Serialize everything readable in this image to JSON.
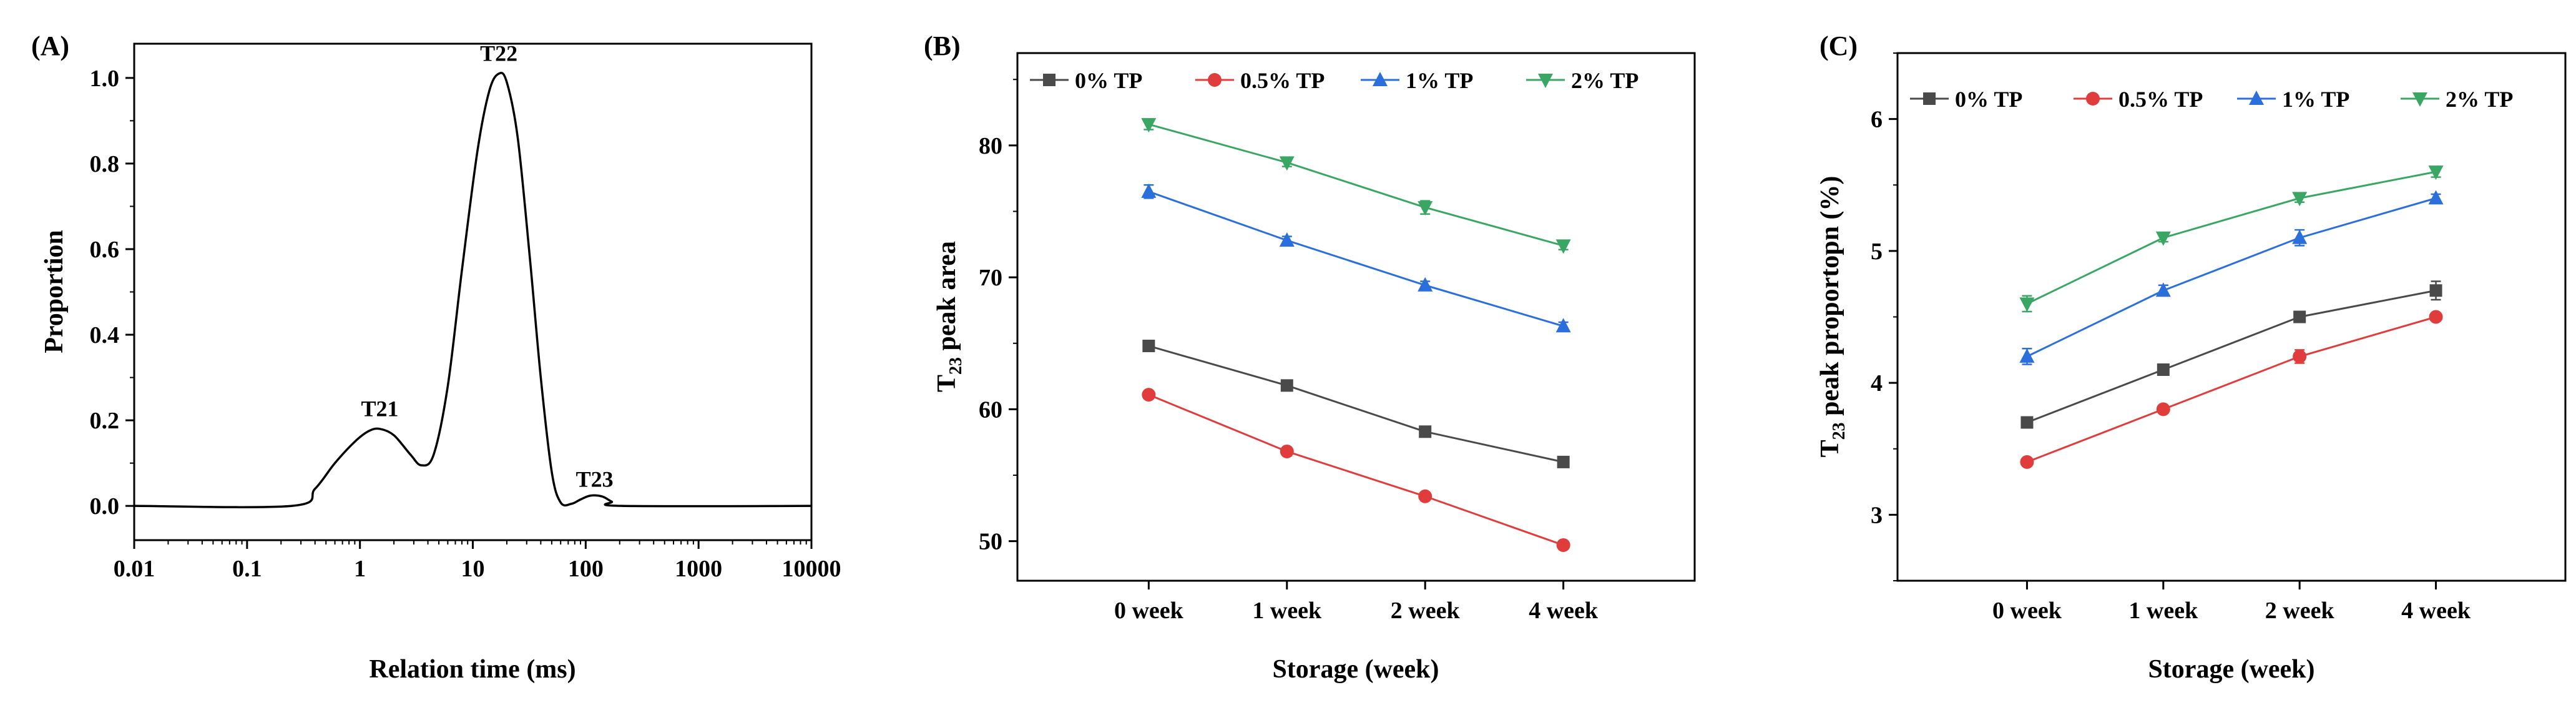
{
  "chart_data": [
    {
      "id": "A",
      "type": "line",
      "panel_label": "(A)",
      "xlabel": "Relation time (ms)",
      "ylabel": "Proportion",
      "xscale": "log",
      "xlim": [
        0.01,
        10000
      ],
      "ylim": [
        -0.08,
        1.08
      ],
      "x_ticks": [
        0.01,
        0.1,
        1,
        10,
        100,
        1000,
        10000
      ],
      "x_tick_labels": [
        "0.01",
        "0.1",
        "1",
        "10",
        "100",
        "1000",
        "10000"
      ],
      "y_ticks": [
        0.0,
        0.2,
        0.4,
        0.6,
        0.8,
        1.0
      ],
      "y_tick_labels": [
        "0.0",
        "0.2",
        "0.4",
        "0.6",
        "0.8",
        "1.0"
      ],
      "series": [
        {
          "name": "relaxation curve",
          "color": "#000000",
          "points": [
            [
              0.01,
              0
            ],
            [
              0.25,
              0
            ],
            [
              0.4,
              0.04
            ],
            [
              0.6,
              0.1
            ],
            [
              0.9,
              0.15
            ],
            [
              1.2,
              0.175
            ],
            [
              1.5,
              0.18
            ],
            [
              2.0,
              0.165
            ],
            [
              2.8,
              0.12
            ],
            [
              3.5,
              0.095
            ],
            [
              4.5,
              0.12
            ],
            [
              6,
              0.28
            ],
            [
              8,
              0.55
            ],
            [
              11,
              0.83
            ],
            [
              14,
              0.97
            ],
            [
              17,
              1.01
            ],
            [
              20,
              0.99
            ],
            [
              25,
              0.86
            ],
            [
              32,
              0.58
            ],
            [
              40,
              0.3
            ],
            [
              50,
              0.08
            ],
            [
              60,
              0.008
            ],
            [
              75,
              0.005
            ],
            [
              90,
              0.015
            ],
            [
              110,
              0.024
            ],
            [
              140,
              0.022
            ],
            [
              170,
              0.01
            ],
            [
              210,
              0
            ],
            [
              10000,
              0
            ]
          ]
        }
      ],
      "annotations": [
        {
          "text": "T21",
          "x": 1.5,
          "y": 0.21
        },
        {
          "text": "T22",
          "x": 17,
          "y": 1.04
        },
        {
          "text": "T23",
          "x": 120,
          "y": 0.045
        }
      ]
    },
    {
      "id": "B",
      "type": "line",
      "panel_label": "(B)",
      "xlabel": "Storage (week)",
      "ylabel_main": "T",
      "ylabel_sub": "23",
      "ylabel_rest": " peak area",
      "categories": [
        "0 week",
        "1 week",
        "2 week",
        "4 week"
      ],
      "ylim": [
        47,
        87
      ],
      "y_ticks": [
        50,
        60,
        70,
        80
      ],
      "y_tick_labels": [
        "50",
        "60",
        "70",
        "80"
      ],
      "series": [
        {
          "name": "0% TP",
          "color": "#4a4a4a",
          "marker": "square",
          "values": [
            64.8,
            61.8,
            58.3,
            56.0
          ],
          "errors": [
            0.3,
            0.3,
            0.4,
            0.3
          ]
        },
        {
          "name": "0.5% TP",
          "color": "#e03c3c",
          "marker": "circle",
          "values": [
            61.1,
            56.8,
            53.4,
            49.7
          ],
          "errors": [
            0.3,
            0.3,
            0.3,
            0.3
          ]
        },
        {
          "name": "1% TP",
          "color": "#2a6fdb",
          "marker": "triangle-up",
          "values": [
            76.5,
            72.8,
            69.4,
            66.3
          ],
          "errors": [
            0.5,
            0.3,
            0.3,
            0.3
          ]
        },
        {
          "name": "2% TP",
          "color": "#3aa664",
          "marker": "triangle-down",
          "values": [
            81.6,
            78.7,
            75.3,
            72.4
          ],
          "errors": [
            0.4,
            0.3,
            0.5,
            0.3
          ]
        }
      ]
    },
    {
      "id": "C",
      "type": "line",
      "panel_label": "(C)",
      "xlabel": "Storage (week)",
      "ylabel_main": "T",
      "ylabel_sub": "23",
      "ylabel_rest": " peak proportopn (%)",
      "categories": [
        "0 week",
        "1 week",
        "2 week",
        "4 week"
      ],
      "ylim": [
        2.5,
        6.5
      ],
      "y_ticks": [
        3,
        4,
        5,
        6
      ],
      "y_tick_labels": [
        "3",
        "4",
        "5",
        "6"
      ],
      "series": [
        {
          "name": "0% TP",
          "color": "#4a4a4a",
          "marker": "square",
          "values": [
            3.7,
            4.1,
            4.5,
            4.7
          ],
          "errors": [
            0.04,
            0.03,
            0.03,
            0.07
          ]
        },
        {
          "name": "0.5% TP",
          "color": "#e03c3c",
          "marker": "circle",
          "values": [
            3.4,
            3.8,
            4.2,
            4.5
          ],
          "errors": [
            0.03,
            0.03,
            0.05,
            0.03
          ]
        },
        {
          "name": "1% TP",
          "color": "#2a6fdb",
          "marker": "triangle-up",
          "values": [
            4.2,
            4.7,
            5.1,
            5.4
          ],
          "errors": [
            0.06,
            0.04,
            0.06,
            0.03
          ]
        },
        {
          "name": "2% TP",
          "color": "#3aa664",
          "marker": "triangle-down",
          "values": [
            4.6,
            5.1,
            5.4,
            5.6
          ],
          "errors": [
            0.06,
            0.03,
            0.03,
            0.04
          ]
        }
      ]
    }
  ]
}
